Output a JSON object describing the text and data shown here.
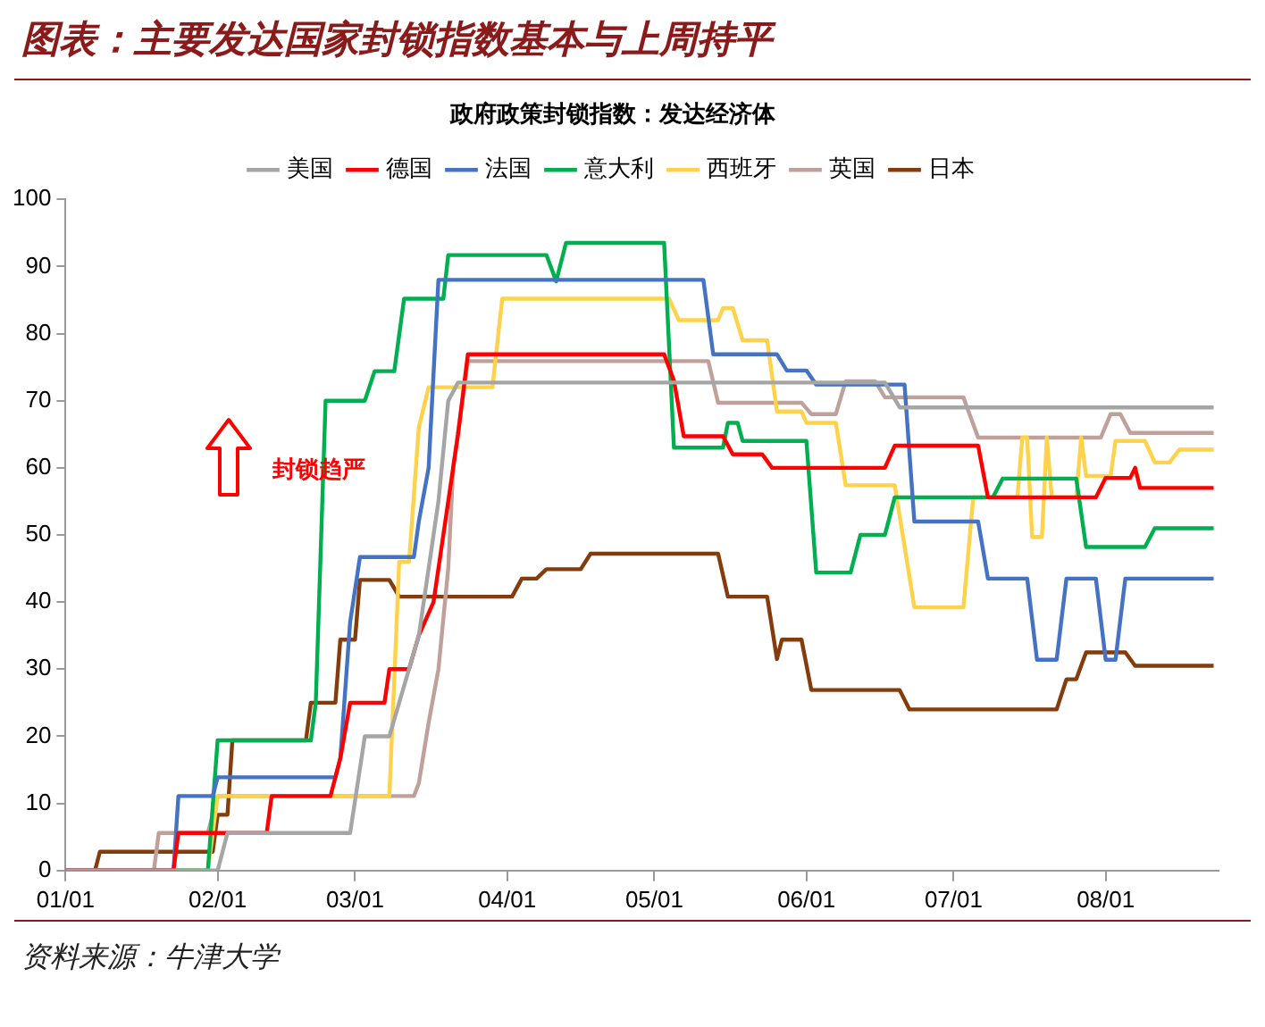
{
  "chart_data": {
    "type": "line",
    "title": "图表：主要发达国家封锁指数基本与上周持平",
    "subtitle": "政府政策封锁指数：发达经济体",
    "annotations": [
      "封锁趋严",
      "资料来源：牛津大学"
    ],
    "legend": "top",
    "marker": "none",
    "line_style": "solid",
    "xlim": [
      "--01-01",
      "--08-24"
    ],
    "xticks": [
      {
        "value": "--01-01",
        "label": "01/01"
      },
      {
        "value": "--02-01",
        "label": "02/01"
      },
      {
        "value": "--03-01",
        "label": "03/01"
      },
      {
        "value": "--04-01",
        "label": "04/01"
      },
      {
        "value": "--05-01",
        "label": "05/01"
      },
      {
        "value": "--06-01",
        "label": "06/01"
      },
      {
        "value": "--07-01",
        "label": "07/01"
      },
      {
        "value": "--08-01",
        "label": "08/01"
      }
    ],
    "ylim": [
      0,
      100
    ],
    "yticks": [
      0,
      10,
      20,
      30,
      40,
      50,
      60,
      70,
      80,
      90,
      100
    ],
    "series": [
      {
        "name": "美国",
        "color": "#a5a5a5",
        "x": [
          "--01-01",
          "--02-01",
          "--02-03",
          "--02-28",
          "--03-03",
          "--03-08",
          "--03-10",
          "--03-14",
          "--03-16",
          "--03-18",
          "--03-20",
          "--03-22",
          "--06-17",
          "--06-20",
          "--08-23"
        ],
        "values": [
          0,
          0,
          5.6,
          5.6,
          20,
          20,
          25,
          35,
          45,
          55,
          70,
          72.7,
          72.7,
          69,
          69
        ]
      },
      {
        "name": "德国",
        "color": "#ff0000",
        "x": [
          "--01-01",
          "--01-23",
          "--01-24",
          "--02-11",
          "--02-12",
          "--02-24",
          "--02-26",
          "--02-28",
          "--03-07",
          "--03-08",
          "--03-12",
          "--03-14",
          "--03-17",
          "--03-19",
          "--03-20",
          "--03-22",
          "--03-24",
          "--05-03",
          "--05-05",
          "--05-07",
          "--05-15",
          "--05-17",
          "--05-23",
          "--05-25",
          "--06-17",
          "--06-19",
          "--07-06",
          "--07-08",
          "--07-30",
          "--08-01",
          "--08-06",
          "--08-07",
          "--08-08",
          "--08-23"
        ],
        "values": [
          0,
          0,
          5.6,
          5.6,
          11.1,
          11.1,
          16.7,
          25,
          25,
          30,
          30,
          35,
          40,
          50,
          55,
          65,
          76.9,
          76.9,
          73,
          64.7,
          64.7,
          62,
          62,
          60,
          60,
          63.3,
          63.3,
          55.6,
          55.6,
          58.5,
          58.5,
          60,
          57,
          57
        ]
      },
      {
        "name": "法国",
        "color": "#4472c4",
        "x": [
          "--01-01",
          "--01-23",
          "--01-24",
          "--01-31",
          "--02-01",
          "--02-25",
          "--02-26",
          "--02-28",
          "--03-02",
          "--03-13",
          "--03-14",
          "--03-16",
          "--03-18",
          "--05-11",
          "--05-13",
          "--05-26",
          "--05-28",
          "--06-01",
          "--06-03",
          "--06-21",
          "--06-23",
          "--07-06",
          "--07-08",
          "--07-16",
          "--07-18",
          "--07-22",
          "--07-24",
          "--07-30",
          "--08-01",
          "--08-03",
          "--08-05",
          "--08-23"
        ],
        "values": [
          0,
          0,
          11.1,
          11.1,
          13.9,
          13.9,
          16.7,
          37,
          46.7,
          46.7,
          52,
          60,
          88,
          88,
          76.9,
          76.9,
          74.5,
          74.5,
          72.4,
          72.4,
          52,
          52,
          43.5,
          43.5,
          31.4,
          31.4,
          43.5,
          43.5,
          31.4,
          31.4,
          43.5,
          43.5
        ]
      },
      {
        "name": "意大利",
        "color": "#00b050",
        "x": [
          "--01-01",
          "--01-30",
          "--02-01",
          "--02-20",
          "--02-21",
          "--02-23",
          "--03-03",
          "--03-05",
          "--03-09",
          "--03-11",
          "--03-19",
          "--03-20",
          "--04-09",
          "--04-11",
          "--04-13",
          "--05-03",
          "--05-05",
          "--05-15",
          "--05-16",
          "--05-18",
          "--05-19",
          "--06-01",
          "--06-03",
          "--06-10",
          "--06-12",
          "--06-17",
          "--06-19",
          "--07-09",
          "--07-11",
          "--07-26",
          "--07-28",
          "--08-09",
          "--08-11",
          "--08-23"
        ],
        "values": [
          0,
          0,
          19.4,
          19.4,
          25,
          70,
          70,
          74.4,
          74.4,
          85.2,
          85.2,
          91.7,
          91.7,
          87.8,
          93.5,
          93.5,
          63,
          63,
          66.7,
          66.7,
          64,
          64,
          44.4,
          44.4,
          50,
          50,
          55.6,
          55.6,
          58.4,
          58.4,
          48.2,
          48.2,
          51,
          51
        ]
      },
      {
        "name": "西班牙",
        "color": "#ffd24a",
        "x": [
          "--01-01",
          "--01-30",
          "--02-01",
          "--03-08",
          "--03-10",
          "--03-12",
          "--03-14",
          "--03-16",
          "--03-29",
          "--03-31",
          "--05-04",
          "--05-06",
          "--05-14",
          "--05-15",
          "--05-17",
          "--05-19",
          "--05-24",
          "--05-26",
          "--05-31",
          "--06-01",
          "--06-07",
          "--06-09",
          "--06-19",
          "--06-23",
          "--07-03",
          "--07-05",
          "--07-14",
          "--07-15",
          "--07-16",
          "--07-17",
          "--07-19",
          "--07-20",
          "--07-21",
          "--07-26",
          "--07-27",
          "--07-28",
          "--08-02",
          "--08-03",
          "--08-09",
          "--08-11",
          "--08-14",
          "--08-16",
          "--08-23"
        ],
        "values": [
          0,
          0,
          11.1,
          11.1,
          46,
          46,
          66,
          72,
          72,
          85.2,
          85.2,
          82,
          82,
          83.8,
          83.8,
          79,
          79,
          68.4,
          68.4,
          66.7,
          66.7,
          57.4,
          57.4,
          39.2,
          39.2,
          55.6,
          55.6,
          64.5,
          64.5,
          49.7,
          49.7,
          64.5,
          55.6,
          55.6,
          64.5,
          58.8,
          58.8,
          64,
          64,
          60.8,
          60.8,
          62.7,
          62.7
        ]
      },
      {
        "name": "英国",
        "color": "#c0a09a",
        "x": [
          "--01-01",
          "--01-19",
          "--01-20",
          "--01-30",
          "--02-01",
          "--03-13",
          "--03-14",
          "--03-16",
          "--03-18",
          "--03-20",
          "--03-21",
          "--03-24",
          "--05-12",
          "--05-14",
          "--05-31",
          "--06-02",
          "--06-07",
          "--06-09",
          "--06-15",
          "--06-17",
          "--07-03",
          "--07-06",
          "--07-31",
          "--08-02",
          "--08-04",
          "--08-06",
          "--08-23"
        ],
        "values": [
          0,
          0,
          5.6,
          5.6,
          11.1,
          11.1,
          13,
          22,
          30,
          45,
          60,
          75.9,
          75.9,
          69.7,
          69.7,
          68,
          68,
          72.9,
          72.9,
          70.5,
          70.5,
          64.5,
          64.5,
          68,
          68,
          65.2,
          65.2
        ]
      },
      {
        "name": "日本",
        "color": "#843c0c",
        "x": [
          "--01-01",
          "--01-07",
          "--01-08",
          "--01-31",
          "--02-01",
          "--02-03",
          "--02-04",
          "--02-19",
          "--02-20",
          "--02-25",
          "--02-26",
          "--03-01",
          "--03-02",
          "--03-08",
          "--03-10",
          "--04-02",
          "--04-04",
          "--04-07",
          "--04-09",
          "--04-16",
          "--04-18",
          "--05-14",
          "--05-16",
          "--05-24",
          "--05-26",
          "--05-27",
          "--05-31",
          "--06-02",
          "--06-20",
          "--06-22",
          "--07-22",
          "--07-24",
          "--07-26",
          "--07-28",
          "--08-05",
          "--08-07",
          "--08-23"
        ],
        "values": [
          0,
          0,
          2.8,
          2.8,
          8.3,
          8.3,
          19.4,
          19.4,
          25,
          25,
          34.4,
          34.4,
          43.3,
          43.3,
          40.8,
          40.8,
          43.5,
          43.5,
          44.9,
          44.9,
          47.2,
          47.2,
          40.8,
          40.8,
          31.5,
          34.4,
          34.4,
          26.9,
          26.9,
          24,
          24,
          28.5,
          28.5,
          32.5,
          32.5,
          30.5,
          30.5
        ]
      }
    ]
  }
}
